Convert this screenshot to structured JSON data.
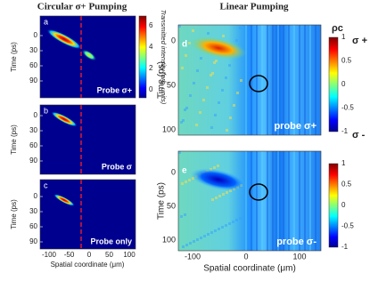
{
  "left": {
    "title": "Circular σ+ Pumping",
    "xlabel": "Spatial coordinate (μm)",
    "xticks": [
      "-100",
      "-50",
      "0",
      "50",
      "100"
    ],
    "panels": [
      {
        "letter": "a",
        "label": "Probe σ+",
        "ylabel": "Time (ps)",
        "yticks": [
          "0",
          "30",
          "60",
          "90"
        ]
      },
      {
        "letter": "b",
        "label": "Probe σ",
        "ylabel": "Time (ps)",
        "yticks": [
          "0",
          "30",
          "60",
          "90"
        ]
      },
      {
        "letter": "c",
        "label": "Probe only",
        "ylabel": "Time (ps)",
        "yticks": [
          "0",
          "30",
          "60",
          "90"
        ]
      }
    ],
    "colorbar": {
      "label": "Transmitted intensity (arb. units)",
      "ticks": [
        "6",
        "4",
        "2",
        "0"
      ]
    }
  },
  "right": {
    "title": "Linear Pumping",
    "xlabel": "Spatial coordinate (μm)",
    "xticks": [
      "-100",
      "0",
      "100"
    ],
    "panels": [
      {
        "letter": "d",
        "label": "probe σ+",
        "ylabel": "Time (ps)",
        "yticks": [
          "0",
          "50",
          "100"
        ]
      },
      {
        "letter": "e",
        "label": "probe σ-",
        "ylabel": "Time (ps)",
        "yticks": [
          "0",
          "50",
          "100"
        ]
      }
    ],
    "colorbar": {
      "title": "ρc",
      "top": "σ +",
      "bottom": "σ -",
      "ticks": [
        "1",
        "0.5",
        "0",
        "-0.5",
        "-1"
      ]
    }
  }
}
